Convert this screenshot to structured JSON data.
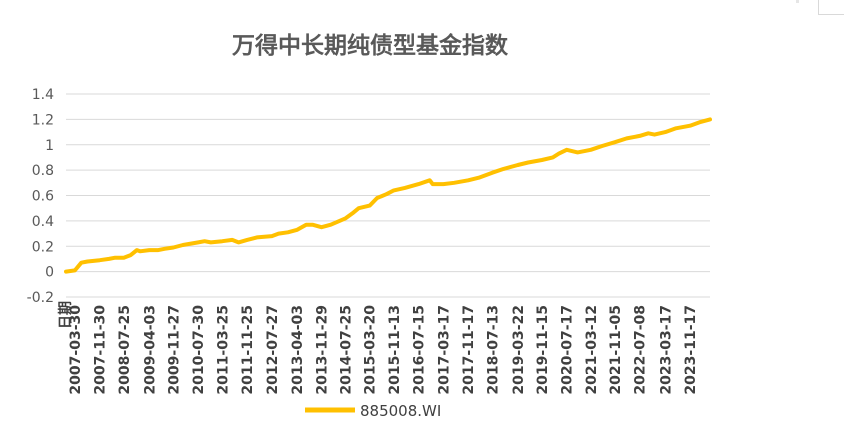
{
  "chart_data": {
    "type": "line",
    "title": "万得中长期纯债型基金指数",
    "xlabel": "日期",
    "ylabel": "",
    "ylim": [
      -0.2,
      1.4
    ],
    "yticks": [
      "-0.2",
      "0",
      "0.2",
      "0.4",
      "0.6",
      "0.8",
      "1",
      "1.2",
      "1.4"
    ],
    "grid": true,
    "legend": "bottom",
    "categories": [
      "2007-03-30",
      "2007-11-30",
      "2008-07-25",
      "2009-04-03",
      "2009-11-27",
      "2010-07-30",
      "2011-03-25",
      "2011-11-25",
      "2012-07-27",
      "2013-04-03",
      "2013-11-29",
      "2014-07-25",
      "2015-03-20",
      "2015-11-13",
      "2016-07-15",
      "2017-03-17",
      "2017-11-17",
      "2018-07-13",
      "2019-03-22",
      "2019-11-15",
      "2020-07-17",
      "2021-03-12",
      "2021-11-05",
      "2022-07-08",
      "2023-03-17",
      "2023-11-17"
    ],
    "series": [
      {
        "name": "885008.WI",
        "color": "#FFC000",
        "x": [
          "2007-01",
          "2007-03-30",
          "2007-06",
          "2007-08",
          "2007-11-30",
          "2008-03",
          "2008-05",
          "2008-07-25",
          "2008-10",
          "2008-12",
          "2009-01",
          "2009-04-03",
          "2009-07",
          "2009-09",
          "2009-11-27",
          "2010-03",
          "2010-07-30",
          "2010-10",
          "2010-12",
          "2011-03-25",
          "2011-07",
          "2011-09",
          "2011-11-25",
          "2012-03",
          "2012-07-27",
          "2012-10",
          "2013-01",
          "2013-04-03",
          "2013-07",
          "2013-09",
          "2013-11-29",
          "2014-03",
          "2014-07-25",
          "2014-10",
          "2014-12",
          "2015-03-20",
          "2015-06",
          "2015-09",
          "2015-11-13",
          "2016-03",
          "2016-07-15",
          "2016-11",
          "2016-12",
          "2017-03-17",
          "2017-07",
          "2017-11-17",
          "2018-03",
          "2018-07-13",
          "2018-11",
          "2019-03-22",
          "2019-07",
          "2019-11-15",
          "2020-03",
          "2020-05",
          "2020-07-17",
          "2020-11",
          "2021-03-12",
          "2021-07",
          "2021-11-05",
          "2022-03",
          "2022-07-08",
          "2022-10",
          "2022-12",
          "2023-03-17",
          "2023-07",
          "2023-11-17",
          "2024-03",
          "2024-06"
        ],
        "values": [
          0.0,
          0.01,
          0.07,
          0.08,
          0.09,
          0.1,
          0.11,
          0.11,
          0.13,
          0.17,
          0.16,
          0.17,
          0.17,
          0.18,
          0.19,
          0.21,
          0.23,
          0.24,
          0.23,
          0.24,
          0.25,
          0.23,
          0.25,
          0.27,
          0.28,
          0.3,
          0.31,
          0.33,
          0.37,
          0.37,
          0.35,
          0.37,
          0.42,
          0.46,
          0.5,
          0.52,
          0.58,
          0.61,
          0.64,
          0.66,
          0.69,
          0.72,
          0.69,
          0.69,
          0.7,
          0.72,
          0.74,
          0.78,
          0.81,
          0.84,
          0.86,
          0.88,
          0.9,
          0.93,
          0.96,
          0.94,
          0.96,
          0.99,
          1.02,
          1.05,
          1.07,
          1.09,
          1.08,
          1.1,
          1.13,
          1.15,
          1.18,
          1.2
        ]
      }
    ]
  }
}
